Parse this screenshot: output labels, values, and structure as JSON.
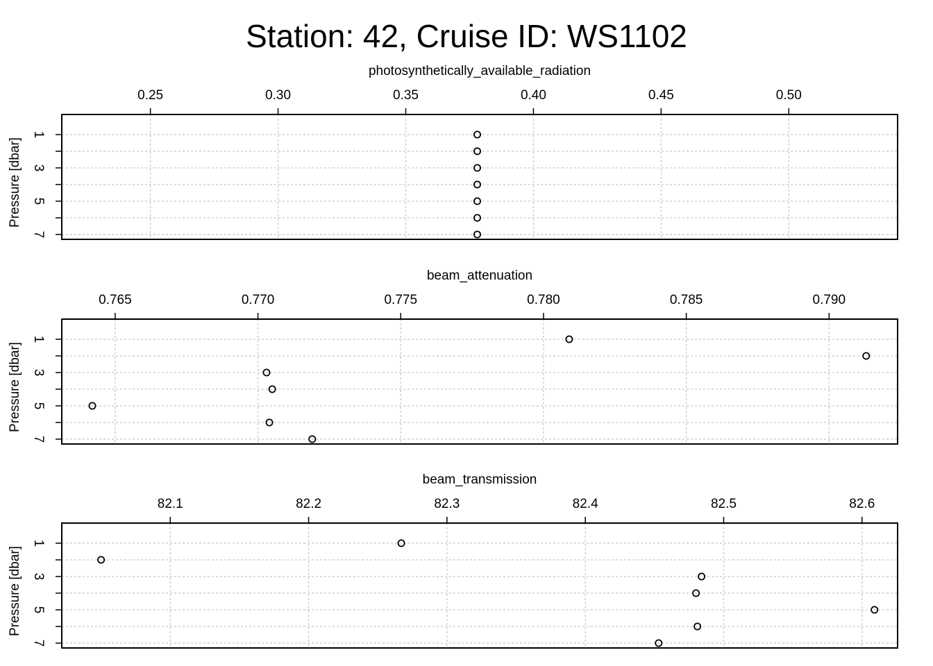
{
  "title": "Station: 42, Cruise ID: WS1102",
  "chart_data": [
    {
      "type": "scatter",
      "title": "photosynthetically_available_radiation",
      "xlabel": "photosynthetically_available_radiation",
      "ylabel": "Pressure [dbar]",
      "x_ticks": [
        "0.25",
        "0.30",
        "0.35",
        "0.40",
        "0.45",
        "0.50"
      ],
      "y_ticks": [
        "1",
        "3",
        "5",
        "7"
      ],
      "xlim": [
        0.2153,
        0.5426
      ],
      "ylim": [
        0,
        7
      ],
      "y_reversed": true,
      "grid": true,
      "points": [
        {
          "x": 0.378,
          "y": 1
        },
        {
          "x": 0.378,
          "y": 2
        },
        {
          "x": 0.378,
          "y": 3
        },
        {
          "x": 0.378,
          "y": 4
        },
        {
          "x": 0.378,
          "y": 5
        },
        {
          "x": 0.378,
          "y": 6
        },
        {
          "x": 0.378,
          "y": 7
        }
      ]
    },
    {
      "type": "scatter",
      "title": "beam_attenuation",
      "xlabel": "beam_attenuation",
      "ylabel": "Pressure [dbar]",
      "x_ticks": [
        "0.765",
        "0.770",
        "0.775",
        "0.780",
        "0.785",
        "0.790"
      ],
      "y_ticks": [
        "1",
        "3",
        "5",
        "7"
      ],
      "xlim": [
        0.76313,
        0.7924
      ],
      "ylim": [
        0,
        7
      ],
      "y_reversed": true,
      "grid": true,
      "points": [
        {
          "x": 0.7809,
          "y": 1
        },
        {
          "x": 0.7913,
          "y": 2
        },
        {
          "x": 0.7703,
          "y": 3
        },
        {
          "x": 0.7705,
          "y": 4
        },
        {
          "x": 0.7642,
          "y": 5
        },
        {
          "x": 0.7704,
          "y": 6
        },
        {
          "x": 0.7719,
          "y": 7
        }
      ]
    },
    {
      "type": "scatter",
      "title": "beam_transmission",
      "xlabel": "beam_transmission",
      "ylabel": "Pressure [dbar]",
      "x_ticks": [
        "82.1",
        "82.2",
        "82.3",
        "82.4",
        "82.5",
        "82.6"
      ],
      "y_ticks": [
        "1",
        "3",
        "5",
        "7"
      ],
      "xlim": [
        82.0216,
        82.6257
      ],
      "ylim": [
        0,
        7
      ],
      "y_reversed": true,
      "grid": true,
      "points": [
        {
          "x": 82.267,
          "y": 1
        },
        {
          "x": 82.05,
          "y": 2
        },
        {
          "x": 82.484,
          "y": 3
        },
        {
          "x": 82.48,
          "y": 4
        },
        {
          "x": 82.609,
          "y": 5
        },
        {
          "x": 82.481,
          "y": 6
        },
        {
          "x": 82.453,
          "y": 7
        }
      ]
    }
  ]
}
